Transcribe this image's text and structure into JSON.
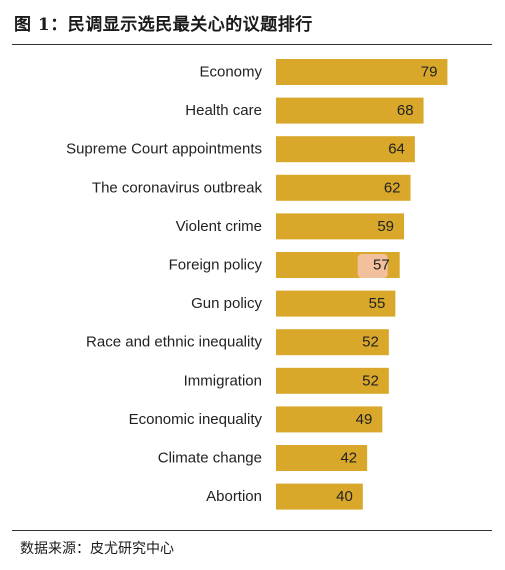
{
  "title": "图 1：民调显示选民最关心的议题排行",
  "source": "数据来源：皮尤研究中心",
  "colors": {
    "bar": "#d9a82b",
    "highlight": "#f6c4b0"
  },
  "chart_data": {
    "type": "bar",
    "orientation": "horizontal",
    "categories": [
      "Economy",
      "Health care",
      "Supreme Court appointments",
      "The coronavirus outbreak",
      "Violent crime",
      "Foreign policy",
      "Gun policy",
      "Race and ethnic inequality",
      "Immigration",
      "Economic inequality",
      "Climate change",
      "Abortion"
    ],
    "values": [
      79,
      68,
      64,
      62,
      59,
      57,
      55,
      52,
      52,
      49,
      42,
      40
    ],
    "value_labels": [
      "79",
      "68",
      "64",
      "62",
      "59",
      "57",
      "55",
      "52",
      "52",
      "49",
      "42",
      "40"
    ],
    "highlighted_category": "Foreign policy",
    "xlim": [
      0,
      100
    ],
    "grid": false,
    "legend": "none"
  }
}
